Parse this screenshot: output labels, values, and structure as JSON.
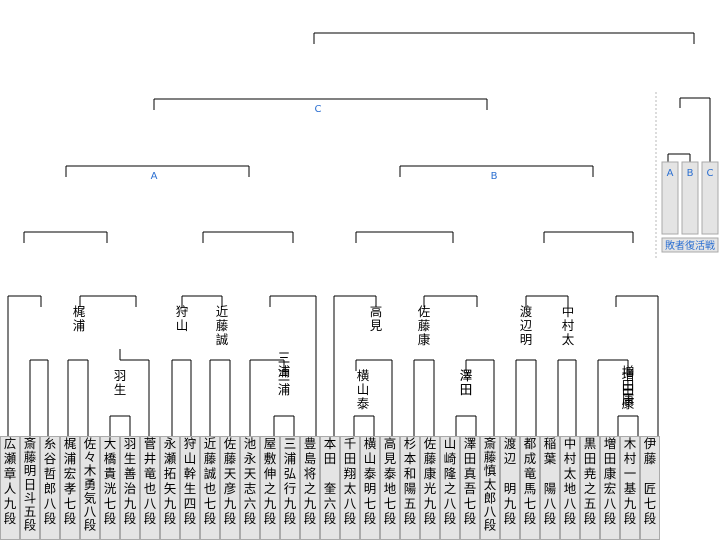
{
  "players": [
    "広瀬章人九段",
    "斎藤明日斗五段",
    "糸谷哲郎八段",
    "梶浦宏孝七段",
    "佐々木勇気八段",
    "大橋貴洸七段",
    "羽生善治九段",
    "菅井竜也八段",
    "永瀬拓矢九段",
    "狩山幹生四段",
    "近藤誠也七段",
    "佐藤天彦九段",
    "池永天志六段",
    "屋敷伸之九段",
    "三浦弘行九段",
    "豊島将之九段",
    "本田　奎六段",
    "千田翔太八段",
    "横山泰明七段",
    "高見泰地七段",
    "杉本和陽五段",
    "佐藤康光九段",
    "山崎隆之八段",
    "澤田真吾七段",
    "斎藤慎太郎八段",
    "渡辺　明九段",
    "都成竜馬七段",
    "稲葉　陽八段",
    "中村太地八段",
    "黒田尭之五段",
    "増田康宏八段",
    "木村一基九段",
    "伊藤　匠七段"
  ],
  "winners": {
    "r1": [
      "三浦",
      "横山泰",
      "澤田",
      "増田康"
    ],
    "r2": [
      "梶浦",
      "羽生",
      "狩山",
      "近藤誠",
      "三浦",
      "高見",
      "佐藤康",
      "澤田",
      "渡辺明",
      "中村太",
      "増田康"
    ],
    "r3": [
      "梶浦",
      "狩山",
      "近藤誠",
      "高見",
      "佐藤康",
      "渡辺明",
      "中村太"
    ]
  },
  "blocks": {
    "a": "A",
    "b": "B",
    "c": "C"
  },
  "revival": {
    "a": "A",
    "b": "B",
    "c": "C",
    "label": "敗者復活戦"
  }
}
